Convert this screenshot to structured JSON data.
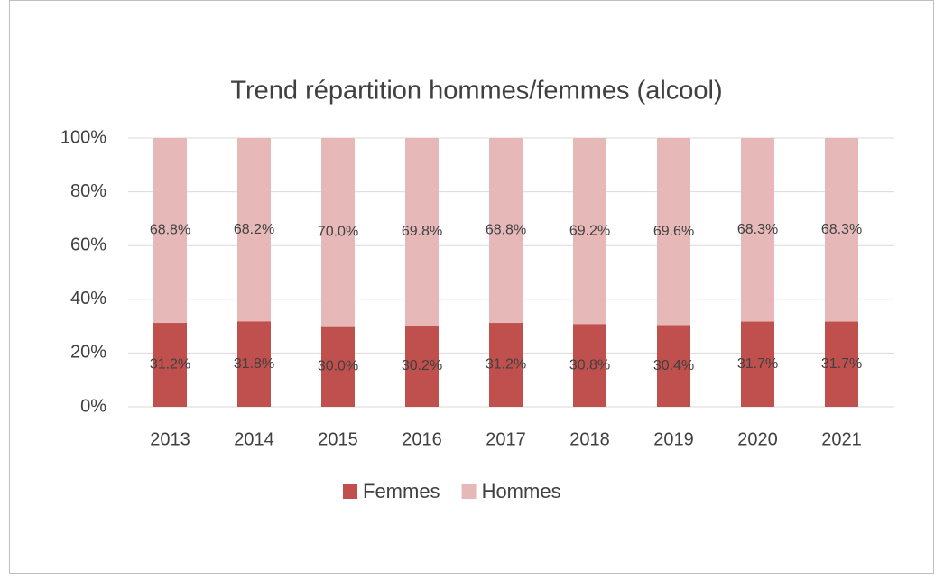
{
  "chart_data": {
    "type": "stacked_bar",
    "title": "Trend répartition hommes/femmes (alcool)",
    "categories": [
      "2013",
      "2014",
      "2015",
      "2016",
      "2017",
      "2018",
      "2019",
      "2020",
      "2021"
    ],
    "series": [
      {
        "name": "Femmes",
        "color": "#c0504d",
        "values": [
          31.2,
          31.8,
          30.0,
          30.2,
          31.2,
          30.8,
          30.4,
          31.7,
          31.7
        ],
        "value_labels": [
          "31.2%",
          "31.8%",
          "30.0%",
          "30.2%",
          "31.2%",
          "30.8%",
          "30.4%",
          "31.7%",
          "31.7%"
        ]
      },
      {
        "name": "Hommes",
        "color": "#e6b9b8",
        "values": [
          68.8,
          68.2,
          70.0,
          69.8,
          68.8,
          69.2,
          69.6,
          68.3,
          68.3
        ],
        "value_labels": [
          "68.8%",
          "68.2%",
          "70.0%",
          "69.8%",
          "68.8%",
          "69.2%",
          "69.6%",
          "68.3%",
          "68.3%"
        ]
      }
    ],
    "ylim": [
      0,
      100
    ],
    "yticks": [
      {
        "value": 0,
        "label": "0%"
      },
      {
        "value": 20,
        "label": "20%"
      },
      {
        "value": 40,
        "label": "40%"
      },
      {
        "value": 60,
        "label": "60%"
      },
      {
        "value": 80,
        "label": "80%"
      },
      {
        "value": 100,
        "label": "100%"
      }
    ],
    "grid": true,
    "legend": "bottom"
  }
}
